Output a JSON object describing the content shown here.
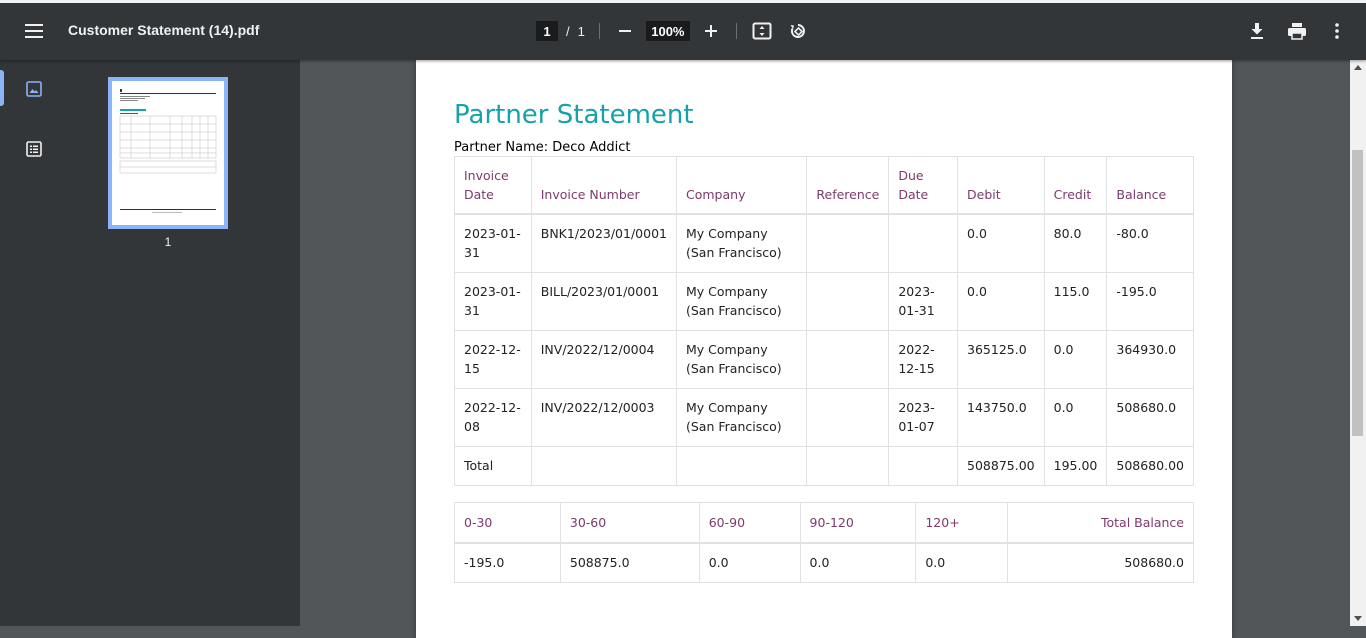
{
  "toolbar": {
    "title": "Customer Statement (14).pdf",
    "page_current": "1",
    "page_sep": "/",
    "page_total": "1",
    "zoom": "100%"
  },
  "sidebar": {
    "thumbnail_page_number": "1"
  },
  "document": {
    "title": "Partner Statement",
    "partner_name": "Partner Name: Deco Addict",
    "invoice_table": {
      "headers": [
        "Invoice Date",
        "Invoice Number",
        "Company",
        "Reference",
        "Due Date",
        "Debit",
        "Credit",
        "Balance"
      ],
      "rows": [
        [
          "2023-01-31",
          "BNK1/2023/01/0001",
          "My Company (San Francisco)",
          "",
          "",
          "0.0",
          "80.0",
          "-80.0"
        ],
        [
          "2023-01-31",
          "BILL/2023/01/0001",
          "My Company (San Francisco)",
          "",
          "2023-01-31",
          "0.0",
          "115.0",
          "-195.0"
        ],
        [
          "2022-12-15",
          "INV/2022/12/0004",
          "My Company (San Francisco)",
          "",
          "2022-12-15",
          "365125.0",
          "0.0",
          "364930.0"
        ],
        [
          "2022-12-08",
          "INV/2022/12/0003",
          "My Company (San Francisco)",
          "",
          "2023-01-07",
          "143750.0",
          "0.0",
          "508680.0"
        ]
      ],
      "total": [
        "Total",
        "",
        "",
        "",
        "",
        "508875.00",
        "195.00",
        "508680.00"
      ]
    },
    "aging_table": {
      "headers": [
        "0-30",
        "30-60",
        "60-90",
        "90-120",
        "120+",
        "Total Balance"
      ],
      "row": [
        "-195.0",
        "508875.0",
        "0.0",
        "0.0",
        "0.0",
        "508680.0"
      ]
    }
  },
  "colors": {
    "title_teal": "#17a2a8",
    "header_purple": "#7c3a6e",
    "toolbar_bg": "#323639",
    "viewer_bg": "#525659",
    "thumb_border": "#8ab4f8"
  },
  "icons": {
    "menu": "hamburger-menu-icon",
    "zoom_out": "minus-icon",
    "zoom_in": "plus-icon",
    "fit": "fit-to-page-icon",
    "rotate": "rotate-icon",
    "download": "download-icon",
    "print": "print-icon",
    "more": "more-vert-icon",
    "thumbnails": "image-icon",
    "outline": "list-icon"
  }
}
